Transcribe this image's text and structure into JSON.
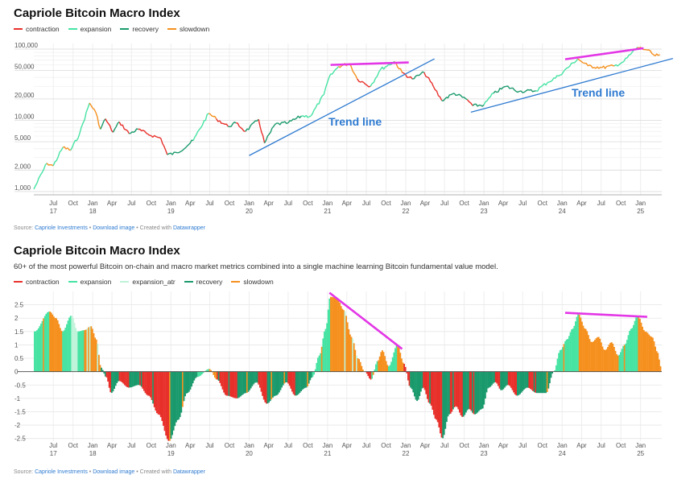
{
  "chart_data": [
    {
      "type": "line",
      "title": "Capriole Bitcoin Macro Index",
      "subtitle": "",
      "y_scale": "log",
      "ylim": [
        900,
        120000
      ],
      "yticks": [
        {
          "v": 100000,
          "label": "100,000"
        },
        {
          "v": 50000,
          "label": "50,000"
        },
        {
          "v": 20000,
          "label": "20,000"
        },
        {
          "v": 10000,
          "label": "10,000"
        },
        {
          "v": 5000,
          "label": "5,000"
        },
        {
          "v": 2000,
          "label": "2,000"
        },
        {
          "v": 1000,
          "label": "1,000"
        }
      ],
      "legend": [
        {
          "name": "contraction",
          "color": "#e8302b"
        },
        {
          "name": "expansion",
          "color": "#46e3a3"
        },
        {
          "name": "recovery",
          "color": "#1a9a6c"
        },
        {
          "name": "slowdown",
          "color": "#f5901e"
        }
      ],
      "series_points": [
        [
          "2017-04-01",
          1080,
          "expansion"
        ],
        [
          "2017-06-01",
          2500,
          "expansion"
        ],
        [
          "2017-07-01",
          2300,
          "slowdown"
        ],
        [
          "2017-08-15",
          4200,
          "expansion"
        ],
        [
          "2017-09-20",
          3800,
          "slowdown"
        ],
        [
          "2017-11-01",
          6500,
          "expansion"
        ],
        [
          "2017-12-17",
          17500,
          "expansion"
        ],
        [
          "2018-01-15",
          13000,
          "slowdown"
        ],
        [
          "2018-02-06",
          7500,
          "slowdown"
        ],
        [
          "2018-03-01",
          10500,
          "recovery"
        ],
        [
          "2018-04-06",
          6800,
          "contraction"
        ],
        [
          "2018-05-05",
          9500,
          "recovery"
        ],
        [
          "2018-06-20",
          6500,
          "contraction"
        ],
        [
          "2018-08-01",
          7500,
          "recovery"
        ],
        [
          "2018-09-15",
          6400,
          "contraction"
        ],
        [
          "2018-11-15",
          5600,
          "contraction"
        ],
        [
          "2018-12-15",
          3300,
          "contraction"
        ],
        [
          "2019-02-01",
          3500,
          "recovery"
        ],
        [
          "2019-04-15",
          5200,
          "recovery"
        ],
        [
          "2019-06-26",
          12500,
          "expansion"
        ],
        [
          "2019-08-01",
          10500,
          "slowdown"
        ],
        [
          "2019-09-25",
          8200,
          "contraction"
        ],
        [
          "2019-11-01",
          9200,
          "recovery"
        ],
        [
          "2019-12-15",
          7000,
          "contraction"
        ],
        [
          "2020-02-14",
          10300,
          "recovery"
        ],
        [
          "2020-03-13",
          4800,
          "contraction"
        ],
        [
          "2020-05-01",
          8800,
          "recovery"
        ],
        [
          "2020-07-01",
          9200,
          "recovery"
        ],
        [
          "2020-09-01",
          11500,
          "recovery"
        ],
        [
          "2020-10-15",
          11500,
          "expansion"
        ],
        [
          "2020-12-15",
          23000,
          "expansion"
        ],
        [
          "2021-01-08",
          40000,
          "expansion"
        ],
        [
          "2021-02-21",
          57000,
          "expansion"
        ],
        [
          "2021-04-14",
          63000,
          "slowdown"
        ],
        [
          "2021-05-20",
          38000,
          "slowdown"
        ],
        [
          "2021-07-20",
          30000,
          "contraction"
        ],
        [
          "2021-09-06",
          52000,
          "expansion"
        ],
        [
          "2021-11-10",
          67000,
          "expansion"
        ],
        [
          "2021-12-15",
          47000,
          "slowdown"
        ],
        [
          "2022-02-01",
          38000,
          "contraction"
        ],
        [
          "2022-03-28",
          47000,
          "recovery"
        ],
        [
          "2022-05-10",
          30000,
          "contraction"
        ],
        [
          "2022-06-18",
          19000,
          "contraction"
        ],
        [
          "2022-08-15",
          24000,
          "recovery"
        ],
        [
          "2022-10-15",
          19500,
          "recovery"
        ],
        [
          "2022-11-10",
          16000,
          "contraction"
        ],
        [
          "2023-01-01",
          16500,
          "recovery"
        ],
        [
          "2023-02-15",
          24000,
          "expansion"
        ],
        [
          "2023-04-15",
          30000,
          "recovery"
        ],
        [
          "2023-06-15",
          25500,
          "recovery"
        ],
        [
          "2023-09-01",
          26000,
          "recovery"
        ],
        [
          "2023-10-25",
          34000,
          "expansion"
        ],
        [
          "2023-12-15",
          42000,
          "expansion"
        ],
        [
          "2024-03-14",
          73000,
          "expansion"
        ],
        [
          "2024-05-01",
          58000,
          "slowdown"
        ],
        [
          "2024-07-05",
          55000,
          "slowdown"
        ],
        [
          "2024-09-01",
          58000,
          "slowdown"
        ],
        [
          "2024-10-15",
          67000,
          "expansion"
        ],
        [
          "2024-12-17",
          106000,
          "expansion"
        ],
        [
          "2025-02-01",
          97000,
          "slowdown"
        ],
        [
          "2025-03-10",
          80000,
          "slowdown"
        ],
        [
          "2025-04-01",
          84000,
          "slowdown"
        ]
      ],
      "annotations": [
        {
          "label": "Trend line"
        },
        {
          "label": "Trend line"
        }
      ]
    },
    {
      "type": "area",
      "title": "Capriole Bitcoin Macro Index",
      "subtitle": "60+ of the most powerful Bitcoin on-chain and macro market metrics combined into a single machine learning Bitcoin fundamental value model.",
      "ylim": [
        -2.6,
        3.0
      ],
      "yticks": [
        {
          "v": 2.5,
          "label": "2.5"
        },
        {
          "v": 2,
          "label": "2"
        },
        {
          "v": 1.5,
          "label": "1.5"
        },
        {
          "v": 1,
          "label": "1"
        },
        {
          "v": 0.5,
          "label": "0.5"
        },
        {
          "v": 0,
          "label": "0"
        },
        {
          "v": -0.5,
          "label": "-0.5"
        },
        {
          "v": -1,
          "label": "-1"
        },
        {
          "v": -1.5,
          "label": "-1.5"
        },
        {
          "v": -2,
          "label": "-2"
        },
        {
          "v": -2.5,
          "label": "-2.5"
        }
      ],
      "legend": [
        {
          "name": "contraction",
          "color": "#e8302b"
        },
        {
          "name": "expansion",
          "color": "#46e3a3"
        },
        {
          "name": "expansion_atr",
          "color": "#bff3d9"
        },
        {
          "name": "recovery",
          "color": "#1a9a6c"
        },
        {
          "name": "slowdown",
          "color": "#f5901e"
        }
      ],
      "series_points": [
        [
          "2017-04-01",
          1.5,
          "expansion"
        ],
        [
          "2017-06-10",
          2.25,
          "expansion"
        ],
        [
          "2017-07-10",
          2.0,
          "slowdown"
        ],
        [
          "2017-08-10",
          1.5,
          "slowdown"
        ],
        [
          "2017-09-20",
          2.1,
          "expansion"
        ],
        [
          "2017-10-20",
          1.5,
          "expansion_atr"
        ],
        [
          "2017-11-20",
          1.55,
          "expansion"
        ],
        [
          "2017-12-20",
          1.7,
          "slowdown"
        ],
        [
          "2018-01-15",
          1.2,
          "slowdown"
        ],
        [
          "2018-02-06",
          0.15,
          "slowdown"
        ],
        [
          "2018-03-01",
          -0.2,
          "recovery"
        ],
        [
          "2018-03-25",
          -0.8,
          "contraction"
        ],
        [
          "2018-05-01",
          -0.35,
          "recovery"
        ],
        [
          "2018-06-15",
          -0.6,
          "contraction"
        ],
        [
          "2018-08-01",
          -0.5,
          "recovery"
        ],
        [
          "2018-09-15",
          -0.9,
          "contraction"
        ],
        [
          "2018-11-01",
          -1.6,
          "contraction"
        ],
        [
          "2018-12-20",
          -2.6,
          "contraction"
        ],
        [
          "2019-02-01",
          -1.8,
          "recovery"
        ],
        [
          "2019-03-15",
          -0.8,
          "recovery"
        ],
        [
          "2019-05-01",
          -0.2,
          "recovery"
        ],
        [
          "2019-06-26",
          0.1,
          "expansion"
        ],
        [
          "2019-08-01",
          -0.3,
          "slowdown"
        ],
        [
          "2019-09-15",
          -0.9,
          "contraction"
        ],
        [
          "2019-11-01",
          -1.0,
          "contraction"
        ],
        [
          "2019-12-15",
          -0.8,
          "recovery"
        ],
        [
          "2020-02-01",
          -0.4,
          "recovery"
        ],
        [
          "2020-03-20",
          -1.2,
          "contraction"
        ],
        [
          "2020-05-01",
          -0.9,
          "recovery"
        ],
        [
          "2020-06-20",
          -0.4,
          "recovery"
        ],
        [
          "2020-08-01",
          -0.9,
          "contraction"
        ],
        [
          "2020-09-20",
          -0.6,
          "recovery"
        ],
        [
          "2020-10-20",
          -0.2,
          "recovery"
        ],
        [
          "2020-11-20",
          0.6,
          "expansion"
        ],
        [
          "2020-12-20",
          1.6,
          "expansion"
        ],
        [
          "2021-01-10",
          2.8,
          "expansion"
        ],
        [
          "2021-02-10",
          2.75,
          "slowdown"
        ],
        [
          "2021-03-15",
          2.3,
          "slowdown"
        ],
        [
          "2021-04-20",
          1.3,
          "slowdown"
        ],
        [
          "2021-05-20",
          0.5,
          "slowdown"
        ],
        [
          "2021-06-20",
          0.0,
          "slowdown"
        ],
        [
          "2021-07-20",
          -0.3,
          "contraction"
        ],
        [
          "2021-08-20",
          0.4,
          "expansion"
        ],
        [
          "2021-09-10",
          0.8,
          "slowdown"
        ],
        [
          "2021-10-10",
          0.2,
          "slowdown"
        ],
        [
          "2021-11-20",
          1.0,
          "expansion"
        ],
        [
          "2021-12-20",
          0.3,
          "slowdown"
        ],
        [
          "2022-01-20",
          -0.6,
          "contraction"
        ],
        [
          "2022-02-20",
          -1.1,
          "recovery"
        ],
        [
          "2022-03-20",
          -0.6,
          "recovery"
        ],
        [
          "2022-04-20",
          -1.2,
          "contraction"
        ],
        [
          "2022-05-20",
          -1.8,
          "contraction"
        ],
        [
          "2022-06-18",
          -2.5,
          "contraction"
        ],
        [
          "2022-07-20",
          -1.6,
          "recovery"
        ],
        [
          "2022-08-20",
          -1.3,
          "contraction"
        ],
        [
          "2022-09-20",
          -1.7,
          "contraction"
        ],
        [
          "2022-10-20",
          -1.4,
          "recovery"
        ],
        [
          "2022-11-15",
          -1.6,
          "contraction"
        ],
        [
          "2022-12-20",
          -1.4,
          "recovery"
        ],
        [
          "2023-01-20",
          -0.6,
          "recovery"
        ],
        [
          "2023-02-20",
          -0.4,
          "recovery"
        ],
        [
          "2023-03-20",
          -0.7,
          "contraction"
        ],
        [
          "2023-04-20",
          -0.5,
          "recovery"
        ],
        [
          "2023-06-01",
          -0.9,
          "contraction"
        ],
        [
          "2023-07-20",
          -0.6,
          "recovery"
        ],
        [
          "2023-09-01",
          -0.8,
          "contraction"
        ],
        [
          "2023-10-15",
          -0.8,
          "recovery"
        ],
        [
          "2023-11-20",
          0.0,
          "recovery"
        ],
        [
          "2023-12-20",
          0.8,
          "expansion"
        ],
        [
          "2024-01-20",
          1.2,
          "expansion"
        ],
        [
          "2024-02-15",
          1.6,
          "expansion"
        ],
        [
          "2024-03-14",
          2.15,
          "expansion"
        ],
        [
          "2024-04-15",
          1.6,
          "slowdown"
        ],
        [
          "2024-05-15",
          1.1,
          "slowdown"
        ],
        [
          "2024-06-15",
          1.3,
          "slowdown"
        ],
        [
          "2024-07-15",
          0.8,
          "slowdown"
        ],
        [
          "2024-08-15",
          1.1,
          "slowdown"
        ],
        [
          "2024-09-15",
          0.6,
          "slowdown"
        ],
        [
          "2024-10-15",
          1.0,
          "expansion"
        ],
        [
          "2024-11-15",
          1.6,
          "expansion"
        ],
        [
          "2024-12-15",
          2.1,
          "expansion"
        ],
        [
          "2025-01-20",
          1.5,
          "slowdown"
        ],
        [
          "2025-02-20",
          1.3,
          "slowdown"
        ],
        [
          "2025-03-20",
          0.7,
          "slowdown"
        ],
        [
          "2025-04-01",
          0.2,
          "slowdown"
        ]
      ]
    }
  ],
  "x_axis": {
    "ticks": [
      {
        "date": "2017-07-01",
        "label": "Jul",
        "year": "17"
      },
      {
        "date": "2017-10-01",
        "label": "Oct",
        "year": ""
      },
      {
        "date": "2018-01-01",
        "label": "Jan",
        "year": "18"
      },
      {
        "date": "2018-04-01",
        "label": "Apr",
        "year": ""
      },
      {
        "date": "2018-07-01",
        "label": "Jul",
        "year": ""
      },
      {
        "date": "2018-10-01",
        "label": "Oct",
        "year": ""
      },
      {
        "date": "2019-01-01",
        "label": "Jan",
        "year": "19"
      },
      {
        "date": "2019-04-01",
        "label": "Apr",
        "year": ""
      },
      {
        "date": "2019-07-01",
        "label": "Jul",
        "year": ""
      },
      {
        "date": "2019-10-01",
        "label": "Oct",
        "year": ""
      },
      {
        "date": "2020-01-01",
        "label": "Jan",
        "year": "20"
      },
      {
        "date": "2020-04-01",
        "label": "Apr",
        "year": ""
      },
      {
        "date": "2020-07-01",
        "label": "Jul",
        "year": ""
      },
      {
        "date": "2020-10-01",
        "label": "Oct",
        "year": ""
      },
      {
        "date": "2021-01-01",
        "label": "Jan",
        "year": "21"
      },
      {
        "date": "2021-04-01",
        "label": "Apr",
        "year": ""
      },
      {
        "date": "2021-07-01",
        "label": "Jul",
        "year": ""
      },
      {
        "date": "2021-10-01",
        "label": "Oct",
        "year": ""
      },
      {
        "date": "2022-01-01",
        "label": "Jan",
        "year": "22"
      },
      {
        "date": "2022-04-01",
        "label": "Apr",
        "year": ""
      },
      {
        "date": "2022-07-01",
        "label": "Jul",
        "year": ""
      },
      {
        "date": "2022-10-01",
        "label": "Oct",
        "year": ""
      },
      {
        "date": "2023-01-01",
        "label": "Jan",
        "year": "23"
      },
      {
        "date": "2023-04-01",
        "label": "Apr",
        "year": ""
      },
      {
        "date": "2023-07-01",
        "label": "Jul",
        "year": ""
      },
      {
        "date": "2023-10-01",
        "label": "Oct",
        "year": ""
      },
      {
        "date": "2024-01-01",
        "label": "Jan",
        "year": "24"
      },
      {
        "date": "2024-04-01",
        "label": "Apr",
        "year": ""
      },
      {
        "date": "2024-07-01",
        "label": "Jul",
        "year": ""
      },
      {
        "date": "2024-10-01",
        "label": "Oct",
        "year": ""
      },
      {
        "date": "2025-01-01",
        "label": "Jan",
        "year": "25"
      }
    ]
  },
  "annotation_lines": {
    "trend_color": "#2f7bd1",
    "peak_color": "#e336e6",
    "top_trend_lines": [
      {
        "from": [
          "2020-01-01",
          3200
        ],
        "to": [
          "2022-05-15",
          73000
        ]
      },
      {
        "from": [
          "2022-11-01",
          13000
        ],
        "to": [
          "2025-06-01",
          74000
        ]
      }
    ],
    "top_peak_lines": [
      {
        "from": [
          "2021-01-15",
          60000
        ],
        "to": [
          "2022-01-15",
          65000
        ]
      },
      {
        "from": [
          "2024-01-15",
          72000
        ],
        "to": [
          "2025-01-15",
          103000
        ]
      }
    ],
    "bottom_peak_lines": [
      {
        "from": [
          "2021-01-10",
          2.95
        ],
        "to": [
          "2021-12-15",
          0.85
        ]
      },
      {
        "from": [
          "2024-01-15",
          2.2
        ],
        "to": [
          "2025-02-01",
          2.05
        ]
      }
    ]
  },
  "source": {
    "prefix": "Source: ",
    "org": "Capriole Investments",
    "sep1": " • ",
    "download": "Download image",
    "sep2": " • Created with ",
    "tool": "Datawrapper"
  }
}
